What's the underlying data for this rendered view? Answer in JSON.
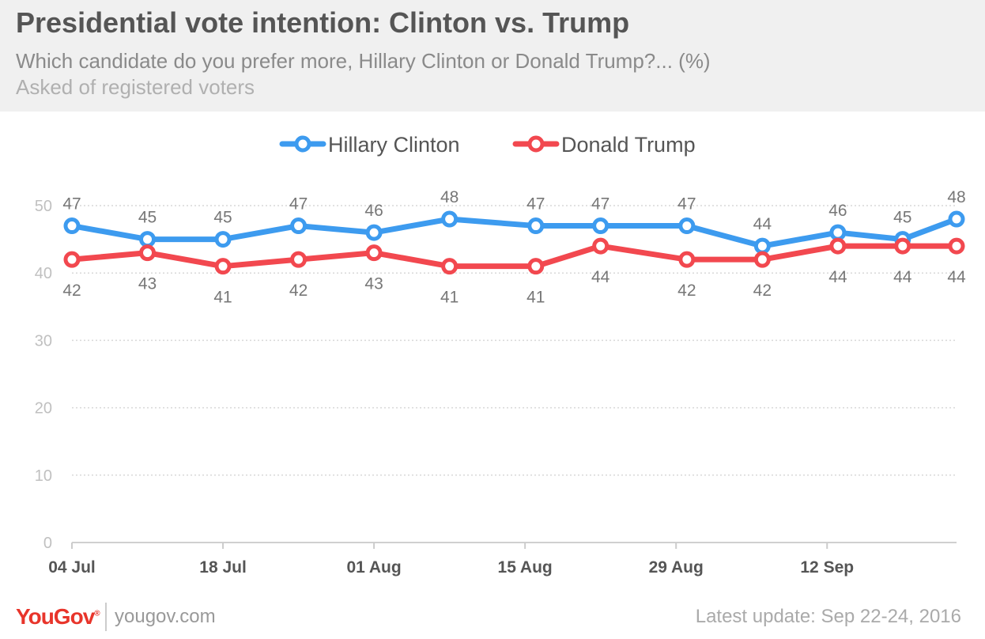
{
  "header": {
    "title": "Presidential vote intention: Clinton vs. Trump",
    "subtitle": "Which candidate do you prefer more, Hillary Clinton or Donald Trump?... (%)",
    "note": "Asked of registered voters"
  },
  "footer": {
    "brand": "YouGov",
    "site": "yougov.com",
    "update": "Latest update: Sep 22-24, 2016"
  },
  "chart_data": {
    "type": "line",
    "x": [
      "2016-07-04",
      "2016-07-11",
      "2016-07-18",
      "2016-07-25",
      "2016-08-01",
      "2016-08-08",
      "2016-08-16",
      "2016-08-22",
      "2016-08-30",
      "2016-09-06",
      "2016-09-13",
      "2016-09-19",
      "2016-09-24"
    ],
    "x_range": [
      "2016-07-04",
      "2016-09-24"
    ],
    "x_ticks": [
      {
        "date": "2016-07-04",
        "label": "04 Jul"
      },
      {
        "date": "2016-07-18",
        "label": "18 Jul"
      },
      {
        "date": "2016-08-01",
        "label": "01 Aug"
      },
      {
        "date": "2016-08-15",
        "label": "15 Aug"
      },
      {
        "date": "2016-08-29",
        "label": "29 Aug"
      },
      {
        "date": "2016-09-12",
        "label": "12 Sep"
      }
    ],
    "ylim": [
      0,
      50
    ],
    "yticks": [
      0,
      10,
      20,
      30,
      40,
      50
    ],
    "grid": true,
    "legend": "top-center",
    "series": [
      {
        "name": "Hillary Clinton",
        "color": "#3d9bef",
        "values": [
          47,
          45,
          45,
          47,
          46,
          48,
          47,
          47,
          47,
          44,
          46,
          45,
          48
        ]
      },
      {
        "name": "Donald Trump",
        "color": "#f2484f",
        "values": [
          42,
          43,
          41,
          42,
          43,
          41,
          41,
          44,
          42,
          42,
          44,
          44,
          44
        ]
      }
    ]
  }
}
